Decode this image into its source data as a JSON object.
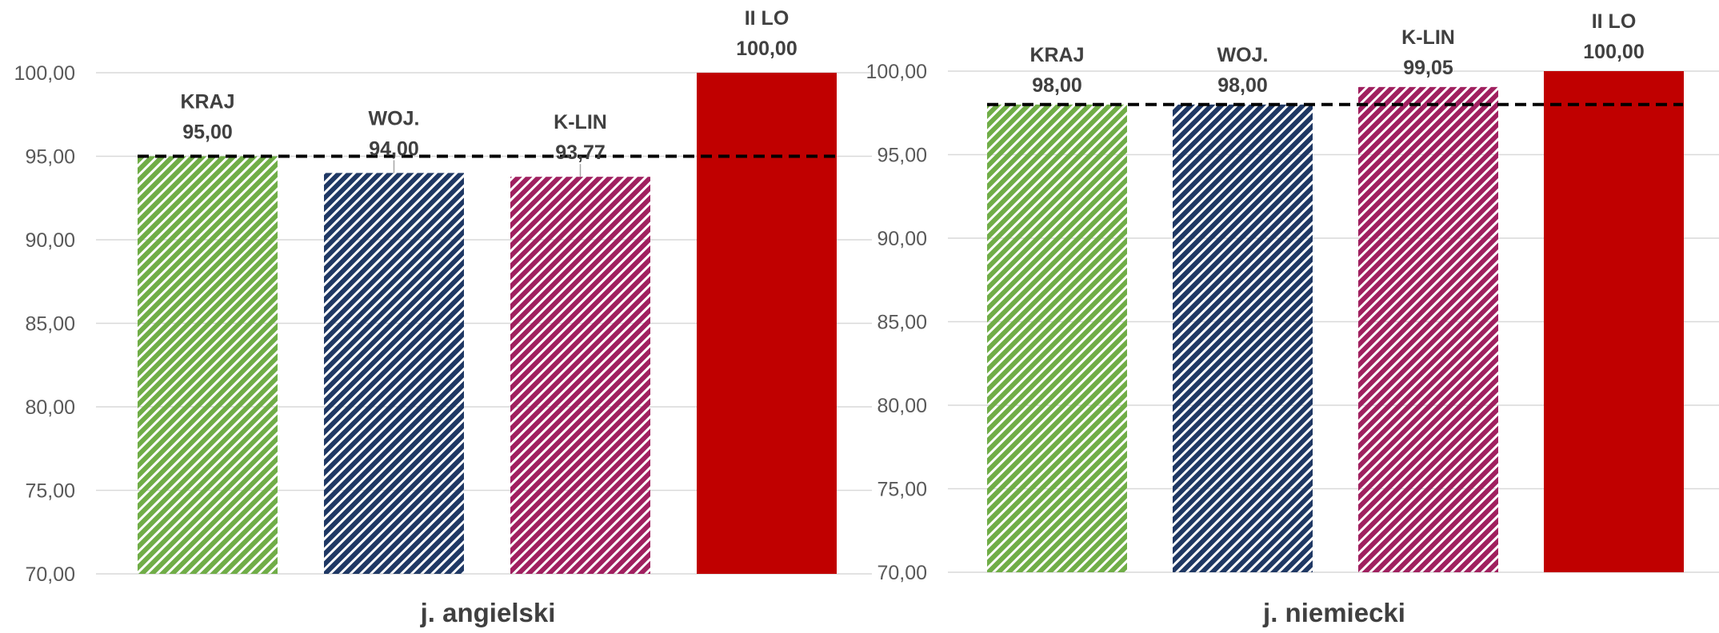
{
  "chart_data": [
    {
      "type": "bar",
      "xlabel": "j. angielski",
      "ylabel": "",
      "ylim": [
        70,
        100
      ],
      "yticks": [
        "70,00",
        "75,00",
        "80,00",
        "85,00",
        "90,00",
        "95,00",
        "100,00"
      ],
      "grid": true,
      "reference_line": 95.0,
      "bars": [
        {
          "name": "KRAJ",
          "value": 95.0,
          "value_label": "95,00",
          "color": "#70AD47",
          "pattern": "hatch"
        },
        {
          "name": "WOJ.",
          "value": 94.0,
          "value_label": "94,00",
          "color": "#1F3864",
          "pattern": "hatch"
        },
        {
          "name": "K-LIN",
          "value": 93.77,
          "value_label": "93,77",
          "color": "#A0205F",
          "pattern": "hatch"
        },
        {
          "name": "II LO",
          "value": 100.0,
          "value_label": "100,00",
          "color": "#C00000",
          "pattern": "solid"
        }
      ]
    },
    {
      "type": "bar",
      "xlabel": "j. niemiecki",
      "ylabel": "",
      "ylim": [
        70,
        100
      ],
      "yticks": [
        "70,00",
        "75,00",
        "80,00",
        "85,00",
        "90,00",
        "95,00",
        "100,00"
      ],
      "grid": true,
      "reference_line": 98.0,
      "bars": [
        {
          "name": "KRAJ",
          "value": 98.0,
          "value_label": "98,00",
          "color": "#70AD47",
          "pattern": "hatch"
        },
        {
          "name": "WOJ.",
          "value": 98.0,
          "value_label": "98,00",
          "color": "#1F3864",
          "pattern": "hatch"
        },
        {
          "name": "K-LIN",
          "value": 99.05,
          "value_label": "99,05",
          "color": "#A0205F",
          "pattern": "hatch"
        },
        {
          "name": "II LO",
          "value": 100.0,
          "value_label": "100,00",
          "color": "#C00000",
          "pattern": "solid"
        }
      ]
    }
  ]
}
